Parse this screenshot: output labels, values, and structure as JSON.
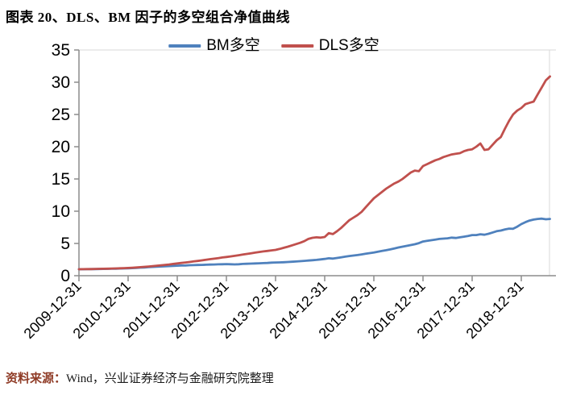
{
  "title": "图表 20、DLS、BM 因子的多空组合净值曲线",
  "source": {
    "label": "资料来源：",
    "text": "Wind，兴业证券经济与金融研究院整理"
  },
  "chart_data": {
    "type": "line",
    "title": "",
    "xlabel": "",
    "ylabel": "",
    "x_unit": "monthly net value, 2009-12 to 2019-07",
    "x_tick_labels": [
      "2009-12-31",
      "2010-12-31",
      "2011-12-31",
      "2012-12-31",
      "2013-12-31",
      "2014-12-31",
      "2015-12-31",
      "2016-12-31",
      "2017-12-31",
      "2018-12-31"
    ],
    "y_ticks": [
      0,
      5,
      10,
      15,
      20,
      25,
      30,
      35
    ],
    "ylim": [
      0,
      35
    ],
    "grid": false,
    "legend_position": "top-center",
    "axis_color": "#8c8c8c",
    "border_color": "#d9d9d9",
    "tick_label_color": "#000000",
    "series": [
      {
        "name": "BM多空",
        "color": "#4F81BD",
        "values": [
          1.0,
          1.0,
          1.01,
          1.02,
          1.03,
          1.04,
          1.05,
          1.06,
          1.08,
          1.09,
          1.11,
          1.13,
          1.15,
          1.18,
          1.21,
          1.25,
          1.28,
          1.32,
          1.36,
          1.4,
          1.43,
          1.46,
          1.49,
          1.52,
          1.55,
          1.57,
          1.59,
          1.62,
          1.64,
          1.66,
          1.68,
          1.7,
          1.72,
          1.74,
          1.76,
          1.78,
          1.8,
          1.78,
          1.75,
          1.78,
          1.82,
          1.85,
          1.88,
          1.9,
          1.93,
          1.95,
          1.98,
          2.02,
          2.05,
          2.06,
          2.09,
          2.12,
          2.16,
          2.2,
          2.25,
          2.3,
          2.35,
          2.4,
          2.45,
          2.52,
          2.6,
          2.7,
          2.65,
          2.75,
          2.85,
          2.95,
          3.05,
          3.12,
          3.2,
          3.3,
          3.4,
          3.5,
          3.6,
          3.72,
          3.84,
          3.95,
          4.08,
          4.22,
          4.38,
          4.5,
          4.62,
          4.75,
          4.88,
          5.05,
          5.3,
          5.4,
          5.5,
          5.6,
          5.7,
          5.75,
          5.8,
          5.9,
          5.85,
          5.95,
          6.05,
          6.15,
          6.3,
          6.3,
          6.42,
          6.35,
          6.5,
          6.7,
          6.9,
          7.0,
          7.18,
          7.3,
          7.28,
          7.6,
          8.0,
          8.3,
          8.55,
          8.7,
          8.8,
          8.85,
          8.75,
          8.8
        ]
      },
      {
        "name": "DLS多空",
        "color": "#C0504D",
        "values": [
          1.0,
          1.01,
          1.02,
          1.03,
          1.05,
          1.06,
          1.08,
          1.09,
          1.11,
          1.13,
          1.15,
          1.17,
          1.2,
          1.24,
          1.28,
          1.33,
          1.38,
          1.43,
          1.49,
          1.55,
          1.61,
          1.67,
          1.74,
          1.82,
          1.9,
          1.97,
          2.05,
          2.13,
          2.21,
          2.29,
          2.38,
          2.47,
          2.56,
          2.64,
          2.73,
          2.82,
          2.9,
          2.99,
          3.08,
          3.18,
          3.28,
          3.38,
          3.48,
          3.58,
          3.68,
          3.76,
          3.84,
          3.92,
          4.0,
          4.15,
          4.32,
          4.5,
          4.7,
          4.9,
          5.1,
          5.35,
          5.7,
          5.88,
          5.95,
          5.9,
          6.0,
          6.6,
          6.45,
          6.9,
          7.4,
          8.0,
          8.6,
          9.0,
          9.4,
          9.9,
          10.6,
          11.3,
          12.0,
          12.5,
          13.0,
          13.5,
          13.9,
          14.3,
          14.6,
          15.0,
          15.5,
          16.0,
          16.3,
          16.2,
          17.0,
          17.3,
          17.6,
          17.9,
          18.1,
          18.4,
          18.6,
          18.8,
          18.9,
          19.0,
          19.3,
          19.5,
          19.6,
          20.0,
          20.5,
          19.5,
          19.6,
          20.3,
          21.0,
          21.5,
          22.8,
          24.0,
          25.0,
          25.6,
          26.0,
          26.6,
          26.8,
          27.0,
          28.1,
          29.2,
          30.3,
          30.9
        ]
      }
    ]
  }
}
